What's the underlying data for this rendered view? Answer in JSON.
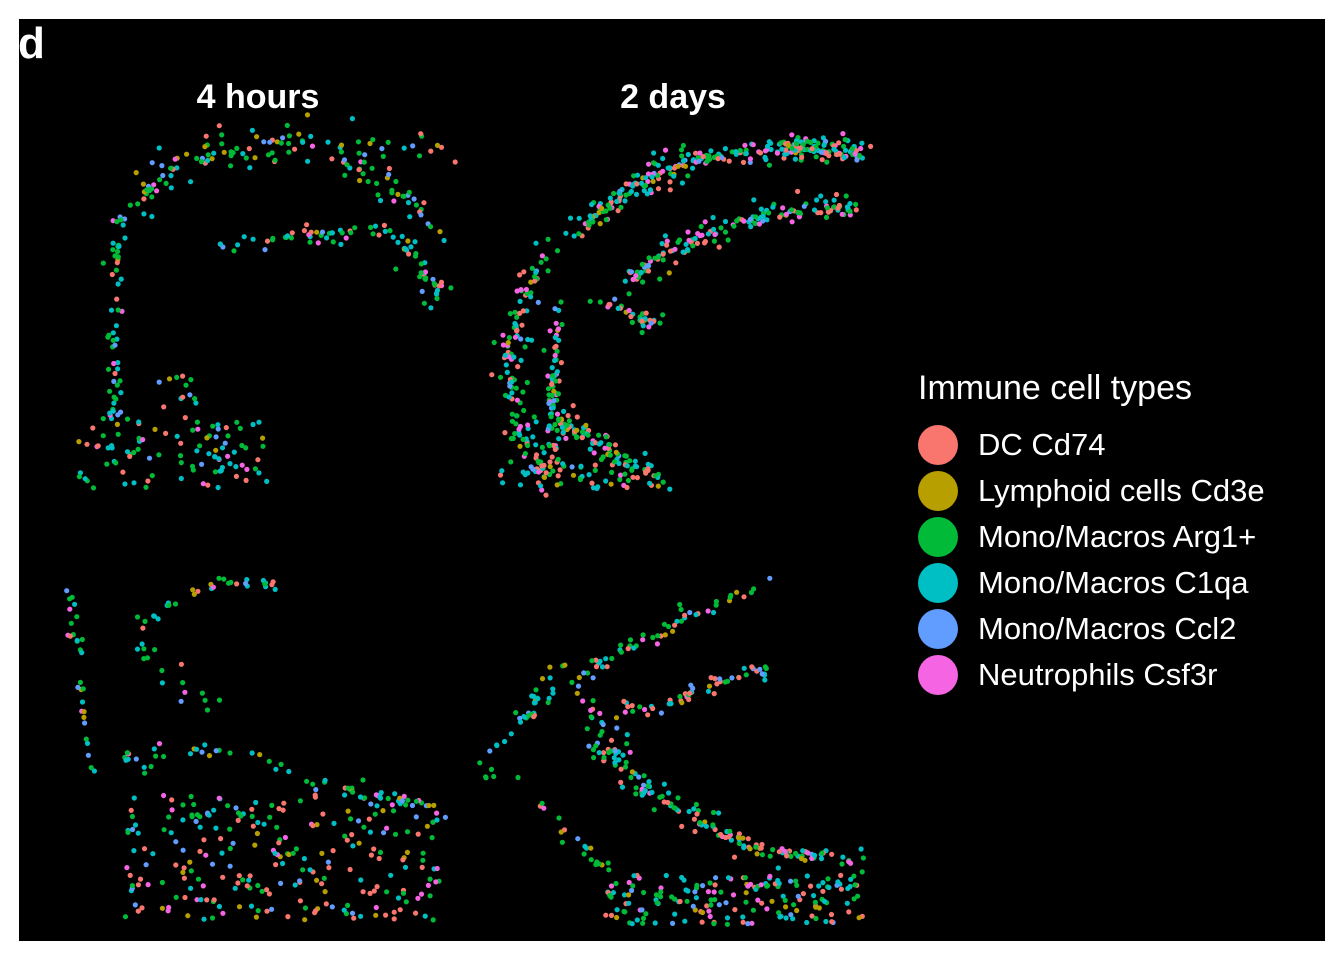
{
  "panel_label": "d",
  "chart_data": {
    "type": "scatter",
    "facets": [
      "4 hours",
      "2 days"
    ],
    "legend": {
      "title": "Immune cell types",
      "position": "right"
    },
    "categories": [
      {
        "name": "DC Cd74",
        "color": "#F8766D"
      },
      {
        "name": "Lymphoid cells Cd3e",
        "color": "#B79F00"
      },
      {
        "name": "Mono/Macros Arg1+",
        "color": "#00BA38"
      },
      {
        "name": "Mono/Macros C1qa",
        "color": "#00BFC4"
      },
      {
        "name": "Mono/Macros Ccl2",
        "color": "#619CFF"
      },
      {
        "name": "Neutrophils Csf3r",
        "color": "#F564E3"
      }
    ],
    "background": "#000000",
    "grid": false,
    "axes": false
  }
}
